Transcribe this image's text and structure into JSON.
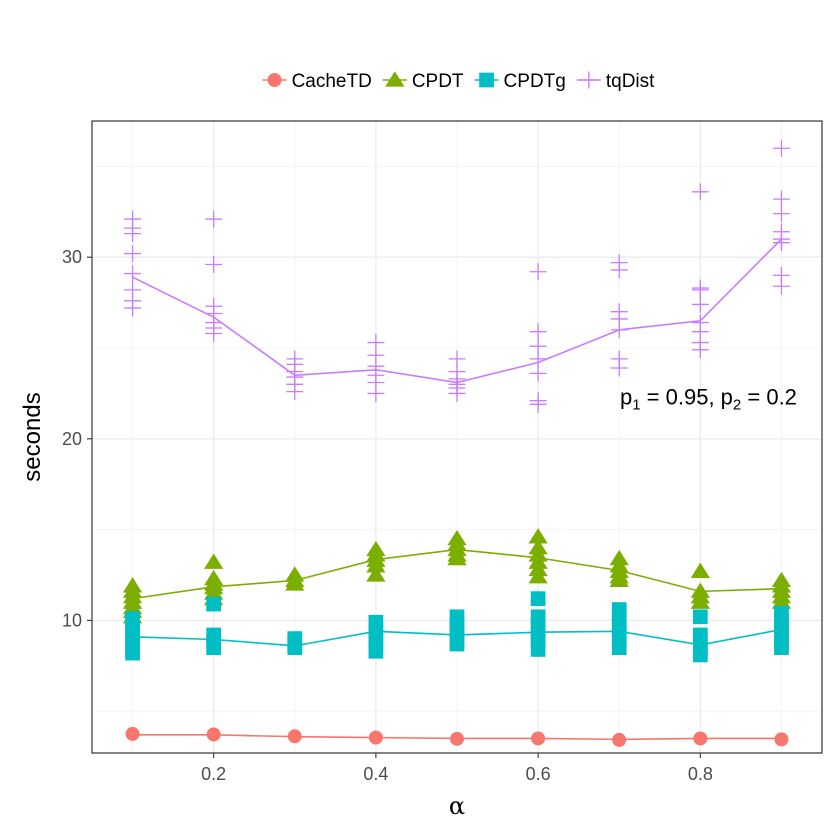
{
  "chart_data": {
    "type": "line",
    "title": "",
    "xlabel": "α",
    "ylabel": "seconds",
    "xlim": [
      0.05,
      0.95
    ],
    "ylim": [
      2.7,
      37.5
    ],
    "x_ticks": [
      0.2,
      0.4,
      0.6,
      0.8
    ],
    "x_tick_labels": [
      "0.2",
      "0.4",
      "0.6",
      "0.8"
    ],
    "y_ticks": [
      10,
      20,
      30
    ],
    "y_tick_labels": [
      "10",
      "20",
      "30"
    ],
    "y_minor_ticks": [
      5,
      15,
      25,
      35
    ],
    "grid": true,
    "legend_position": "top",
    "annotation": {
      "x": 0.81,
      "y": 21.9,
      "p1_label": "p",
      "p1_sub": "1",
      "p1_value": " = 0.95, ",
      "p2_label": "p",
      "p2_sub": "2",
      "p2_value": " = 0.2"
    },
    "series": [
      {
        "name": "CacheTD",
        "color": "#F8766D",
        "marker": "circle",
        "x": [
          0.1,
          0.2,
          0.3,
          0.4,
          0.5,
          0.6,
          0.7,
          0.8,
          0.9
        ],
        "values": [
          3.7,
          3.7,
          3.6,
          3.55,
          3.5,
          3.5,
          3.45,
          3.5,
          3.5
        ],
        "points": [
          [
            0.1,
            3.75
          ],
          [
            0.2,
            3.72
          ],
          [
            0.3,
            3.62
          ],
          [
            0.4,
            3.55
          ],
          [
            0.5,
            3.48
          ],
          [
            0.6,
            3.5
          ],
          [
            0.7,
            3.42
          ],
          [
            0.8,
            3.5
          ],
          [
            0.9,
            3.45
          ]
        ]
      },
      {
        "name": "CPDT",
        "color": "#7CAE00",
        "marker": "triangle",
        "x": [
          0.1,
          0.2,
          0.3,
          0.4,
          0.5,
          0.6,
          0.7,
          0.8,
          0.9
        ],
        "values": [
          11.2,
          11.85,
          12.2,
          13.35,
          13.9,
          13.45,
          12.75,
          11.6,
          11.75
        ],
        "points": [
          [
            0.1,
            11.9
          ],
          [
            0.1,
            11.6
          ],
          [
            0.1,
            11.3
          ],
          [
            0.1,
            11.0
          ],
          [
            0.1,
            10.7
          ],
          [
            0.1,
            10.5
          ],
          [
            0.1,
            10.2
          ],
          [
            0.2,
            13.2
          ],
          [
            0.2,
            12.3
          ],
          [
            0.2,
            12.0
          ],
          [
            0.2,
            11.8
          ],
          [
            0.2,
            11.5
          ],
          [
            0.2,
            11.2
          ],
          [
            0.3,
            12.5
          ],
          [
            0.3,
            12.2
          ],
          [
            0.3,
            12.0
          ],
          [
            0.4,
            13.9
          ],
          [
            0.4,
            13.6
          ],
          [
            0.4,
            13.3
          ],
          [
            0.4,
            13.0
          ],
          [
            0.4,
            12.5
          ],
          [
            0.5,
            14.5
          ],
          [
            0.5,
            14.2
          ],
          [
            0.5,
            13.9
          ],
          [
            0.5,
            13.6
          ],
          [
            0.5,
            13.4
          ],
          [
            0.6,
            14.6
          ],
          [
            0.6,
            14.0
          ],
          [
            0.6,
            13.6
          ],
          [
            0.6,
            13.2
          ],
          [
            0.6,
            12.8
          ],
          [
            0.6,
            12.4
          ],
          [
            0.7,
            13.4
          ],
          [
            0.7,
            13.0
          ],
          [
            0.7,
            12.7
          ],
          [
            0.7,
            12.4
          ],
          [
            0.7,
            12.2
          ],
          [
            0.8,
            12.7
          ],
          [
            0.8,
            11.6
          ],
          [
            0.8,
            11.3
          ],
          [
            0.8,
            11.0
          ],
          [
            0.9,
            12.2
          ],
          [
            0.9,
            11.9
          ],
          [
            0.9,
            11.6
          ],
          [
            0.9,
            11.3
          ],
          [
            0.9,
            11.0
          ]
        ]
      },
      {
        "name": "CPDTg",
        "color": "#00BFC4",
        "marker": "square",
        "x": [
          0.1,
          0.2,
          0.3,
          0.4,
          0.5,
          0.6,
          0.7,
          0.8,
          0.9
        ],
        "values": [
          9.1,
          8.95,
          8.6,
          9.4,
          9.2,
          9.35,
          9.4,
          8.65,
          9.5
        ],
        "points": [
          [
            0.1,
            10.1
          ],
          [
            0.1,
            9.7
          ],
          [
            0.1,
            9.3
          ],
          [
            0.1,
            8.9
          ],
          [
            0.1,
            8.5
          ],
          [
            0.1,
            8.2
          ],
          [
            0.2,
            10.9
          ],
          [
            0.2,
            9.2
          ],
          [
            0.2,
            8.8
          ],
          [
            0.2,
            8.5
          ],
          [
            0.3,
            9.0
          ],
          [
            0.3,
            8.7
          ],
          [
            0.3,
            8.5
          ],
          [
            0.4,
            9.9
          ],
          [
            0.4,
            9.5
          ],
          [
            0.4,
            9.1
          ],
          [
            0.4,
            8.7
          ],
          [
            0.4,
            8.3
          ],
          [
            0.5,
            10.2
          ],
          [
            0.5,
            9.8
          ],
          [
            0.5,
            9.4
          ],
          [
            0.5,
            9.0
          ],
          [
            0.5,
            8.7
          ],
          [
            0.6,
            11.2
          ],
          [
            0.6,
            10.2
          ],
          [
            0.6,
            9.7
          ],
          [
            0.6,
            9.3
          ],
          [
            0.6,
            8.9
          ],
          [
            0.6,
            8.4
          ],
          [
            0.7,
            10.6
          ],
          [
            0.7,
            10.2
          ],
          [
            0.7,
            9.8
          ],
          [
            0.7,
            9.4
          ],
          [
            0.7,
            9.0
          ],
          [
            0.7,
            8.5
          ],
          [
            0.8,
            10.2
          ],
          [
            0.8,
            9.2
          ],
          [
            0.8,
            8.8
          ],
          [
            0.8,
            8.4
          ],
          [
            0.8,
            8.1
          ],
          [
            0.9,
            10.4
          ],
          [
            0.9,
            10.0
          ],
          [
            0.9,
            9.6
          ],
          [
            0.9,
            9.2
          ],
          [
            0.9,
            8.8
          ],
          [
            0.9,
            8.5
          ]
        ]
      },
      {
        "name": "tqDist",
        "color": "#C77CFF",
        "marker": "plus",
        "x": [
          0.1,
          0.2,
          0.3,
          0.4,
          0.5,
          0.6,
          0.7,
          0.8,
          0.9
        ],
        "values": [
          28.9,
          26.7,
          23.5,
          23.8,
          23.1,
          24.2,
          26.0,
          26.5,
          31.0
        ],
        "points": [
          [
            0.1,
            32.1
          ],
          [
            0.1,
            31.6
          ],
          [
            0.1,
            31.3
          ],
          [
            0.1,
            30.2
          ],
          [
            0.1,
            29.1
          ],
          [
            0.1,
            28.2
          ],
          [
            0.1,
            27.6
          ],
          [
            0.1,
            27.2
          ],
          [
            0.2,
            32.1
          ],
          [
            0.2,
            29.6
          ],
          [
            0.2,
            27.3
          ],
          [
            0.2,
            26.9
          ],
          [
            0.2,
            26.4
          ],
          [
            0.2,
            26.1
          ],
          [
            0.2,
            25.8
          ],
          [
            0.3,
            24.4
          ],
          [
            0.3,
            24.1
          ],
          [
            0.3,
            23.7
          ],
          [
            0.3,
            23.4
          ],
          [
            0.3,
            23.0
          ],
          [
            0.3,
            22.6
          ],
          [
            0.4,
            25.3
          ],
          [
            0.4,
            24.6
          ],
          [
            0.4,
            24.0
          ],
          [
            0.4,
            23.5
          ],
          [
            0.4,
            23.1
          ],
          [
            0.4,
            22.5
          ],
          [
            0.5,
            24.4
          ],
          [
            0.5,
            23.7
          ],
          [
            0.5,
            23.3
          ],
          [
            0.5,
            23.0
          ],
          [
            0.5,
            22.8
          ],
          [
            0.5,
            22.5
          ],
          [
            0.6,
            29.2
          ],
          [
            0.6,
            25.9
          ],
          [
            0.6,
            25.1
          ],
          [
            0.6,
            24.4
          ],
          [
            0.6,
            23.6
          ],
          [
            0.6,
            22.1
          ],
          [
            0.6,
            21.9
          ],
          [
            0.7,
            29.7
          ],
          [
            0.7,
            29.3
          ],
          [
            0.7,
            27.0
          ],
          [
            0.7,
            26.6
          ],
          [
            0.7,
            26.0
          ],
          [
            0.7,
            24.4
          ],
          [
            0.7,
            23.9
          ],
          [
            0.8,
            33.6
          ],
          [
            0.8,
            28.3
          ],
          [
            0.8,
            28.2
          ],
          [
            0.8,
            27.4
          ],
          [
            0.8,
            26.4
          ],
          [
            0.8,
            25.9
          ],
          [
            0.8,
            25.3
          ],
          [
            0.8,
            24.9
          ],
          [
            0.9,
            36.0
          ],
          [
            0.9,
            33.2
          ],
          [
            0.9,
            32.4
          ],
          [
            0.9,
            31.4
          ],
          [
            0.9,
            31.0
          ],
          [
            0.9,
            30.8
          ],
          [
            0.9,
            29.0
          ],
          [
            0.9,
            28.4
          ]
        ]
      }
    ]
  }
}
